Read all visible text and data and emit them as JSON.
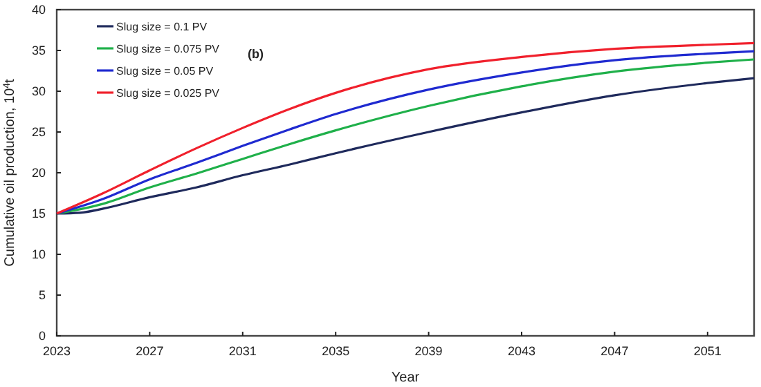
{
  "chart_data": {
    "type": "line",
    "xlabel": "Year",
    "ylabel": "Cumulative oil production, 10$^{4}$t",
    "annotations": [
      "(b)"
    ],
    "xlim": [
      2023,
      2053
    ],
    "xticks": [
      2023,
      2027,
      2031,
      2035,
      2039,
      2043,
      2047,
      2051
    ],
    "ylim": [
      0,
      40
    ],
    "yticks": [
      0,
      5,
      10,
      15,
      20,
      25,
      30,
      35,
      40
    ],
    "grid": false,
    "legend": "top left",
    "line_style": "solid",
    "marker": "none",
    "series": [
      {
        "name": "Slug size = 0.1 PV",
        "color": "#1f2a5c",
        "x": [
          2023,
          2024,
          2025,
          2027,
          2029,
          2031,
          2033,
          2035,
          2039,
          2043,
          2047,
          2051,
          2053
        ],
        "values": [
          15,
          15.1,
          15.6,
          17,
          18.2,
          19.7,
          21,
          22.4,
          25,
          27.4,
          29.5,
          31,
          31.6
        ]
      },
      {
        "name": "Slug size = 0.075 PV",
        "color": "#1fb04a",
        "x": [
          2023,
          2025,
          2027,
          2029,
          2031,
          2033,
          2035,
          2039,
          2043,
          2047,
          2051,
          2053
        ],
        "values": [
          15,
          16.2,
          18.2,
          19.9,
          21.7,
          23.5,
          25.2,
          28.2,
          30.6,
          32.4,
          33.5,
          33.9
        ]
      },
      {
        "name": "Slug size = 0.05 PV",
        "color": "#1f2ad0",
        "x": [
          2023,
          2025,
          2027,
          2029,
          2031,
          2033,
          2035,
          2039,
          2043,
          2047,
          2051,
          2053
        ],
        "values": [
          15,
          16.8,
          19.2,
          21.2,
          23.3,
          25.3,
          27.2,
          30.2,
          32.3,
          33.8,
          34.6,
          34.9
        ]
      },
      {
        "name": "Slug size = 0.025 PV",
        "color": "#f0202c",
        "x": [
          2023,
          2025,
          2027,
          2029,
          2031,
          2033,
          2035,
          2039,
          2043,
          2047,
          2051,
          2053
        ],
        "values": [
          15,
          17.5,
          20.3,
          23,
          25.5,
          27.8,
          29.8,
          32.7,
          34.2,
          35.2,
          35.7,
          35.9
        ]
      }
    ]
  }
}
